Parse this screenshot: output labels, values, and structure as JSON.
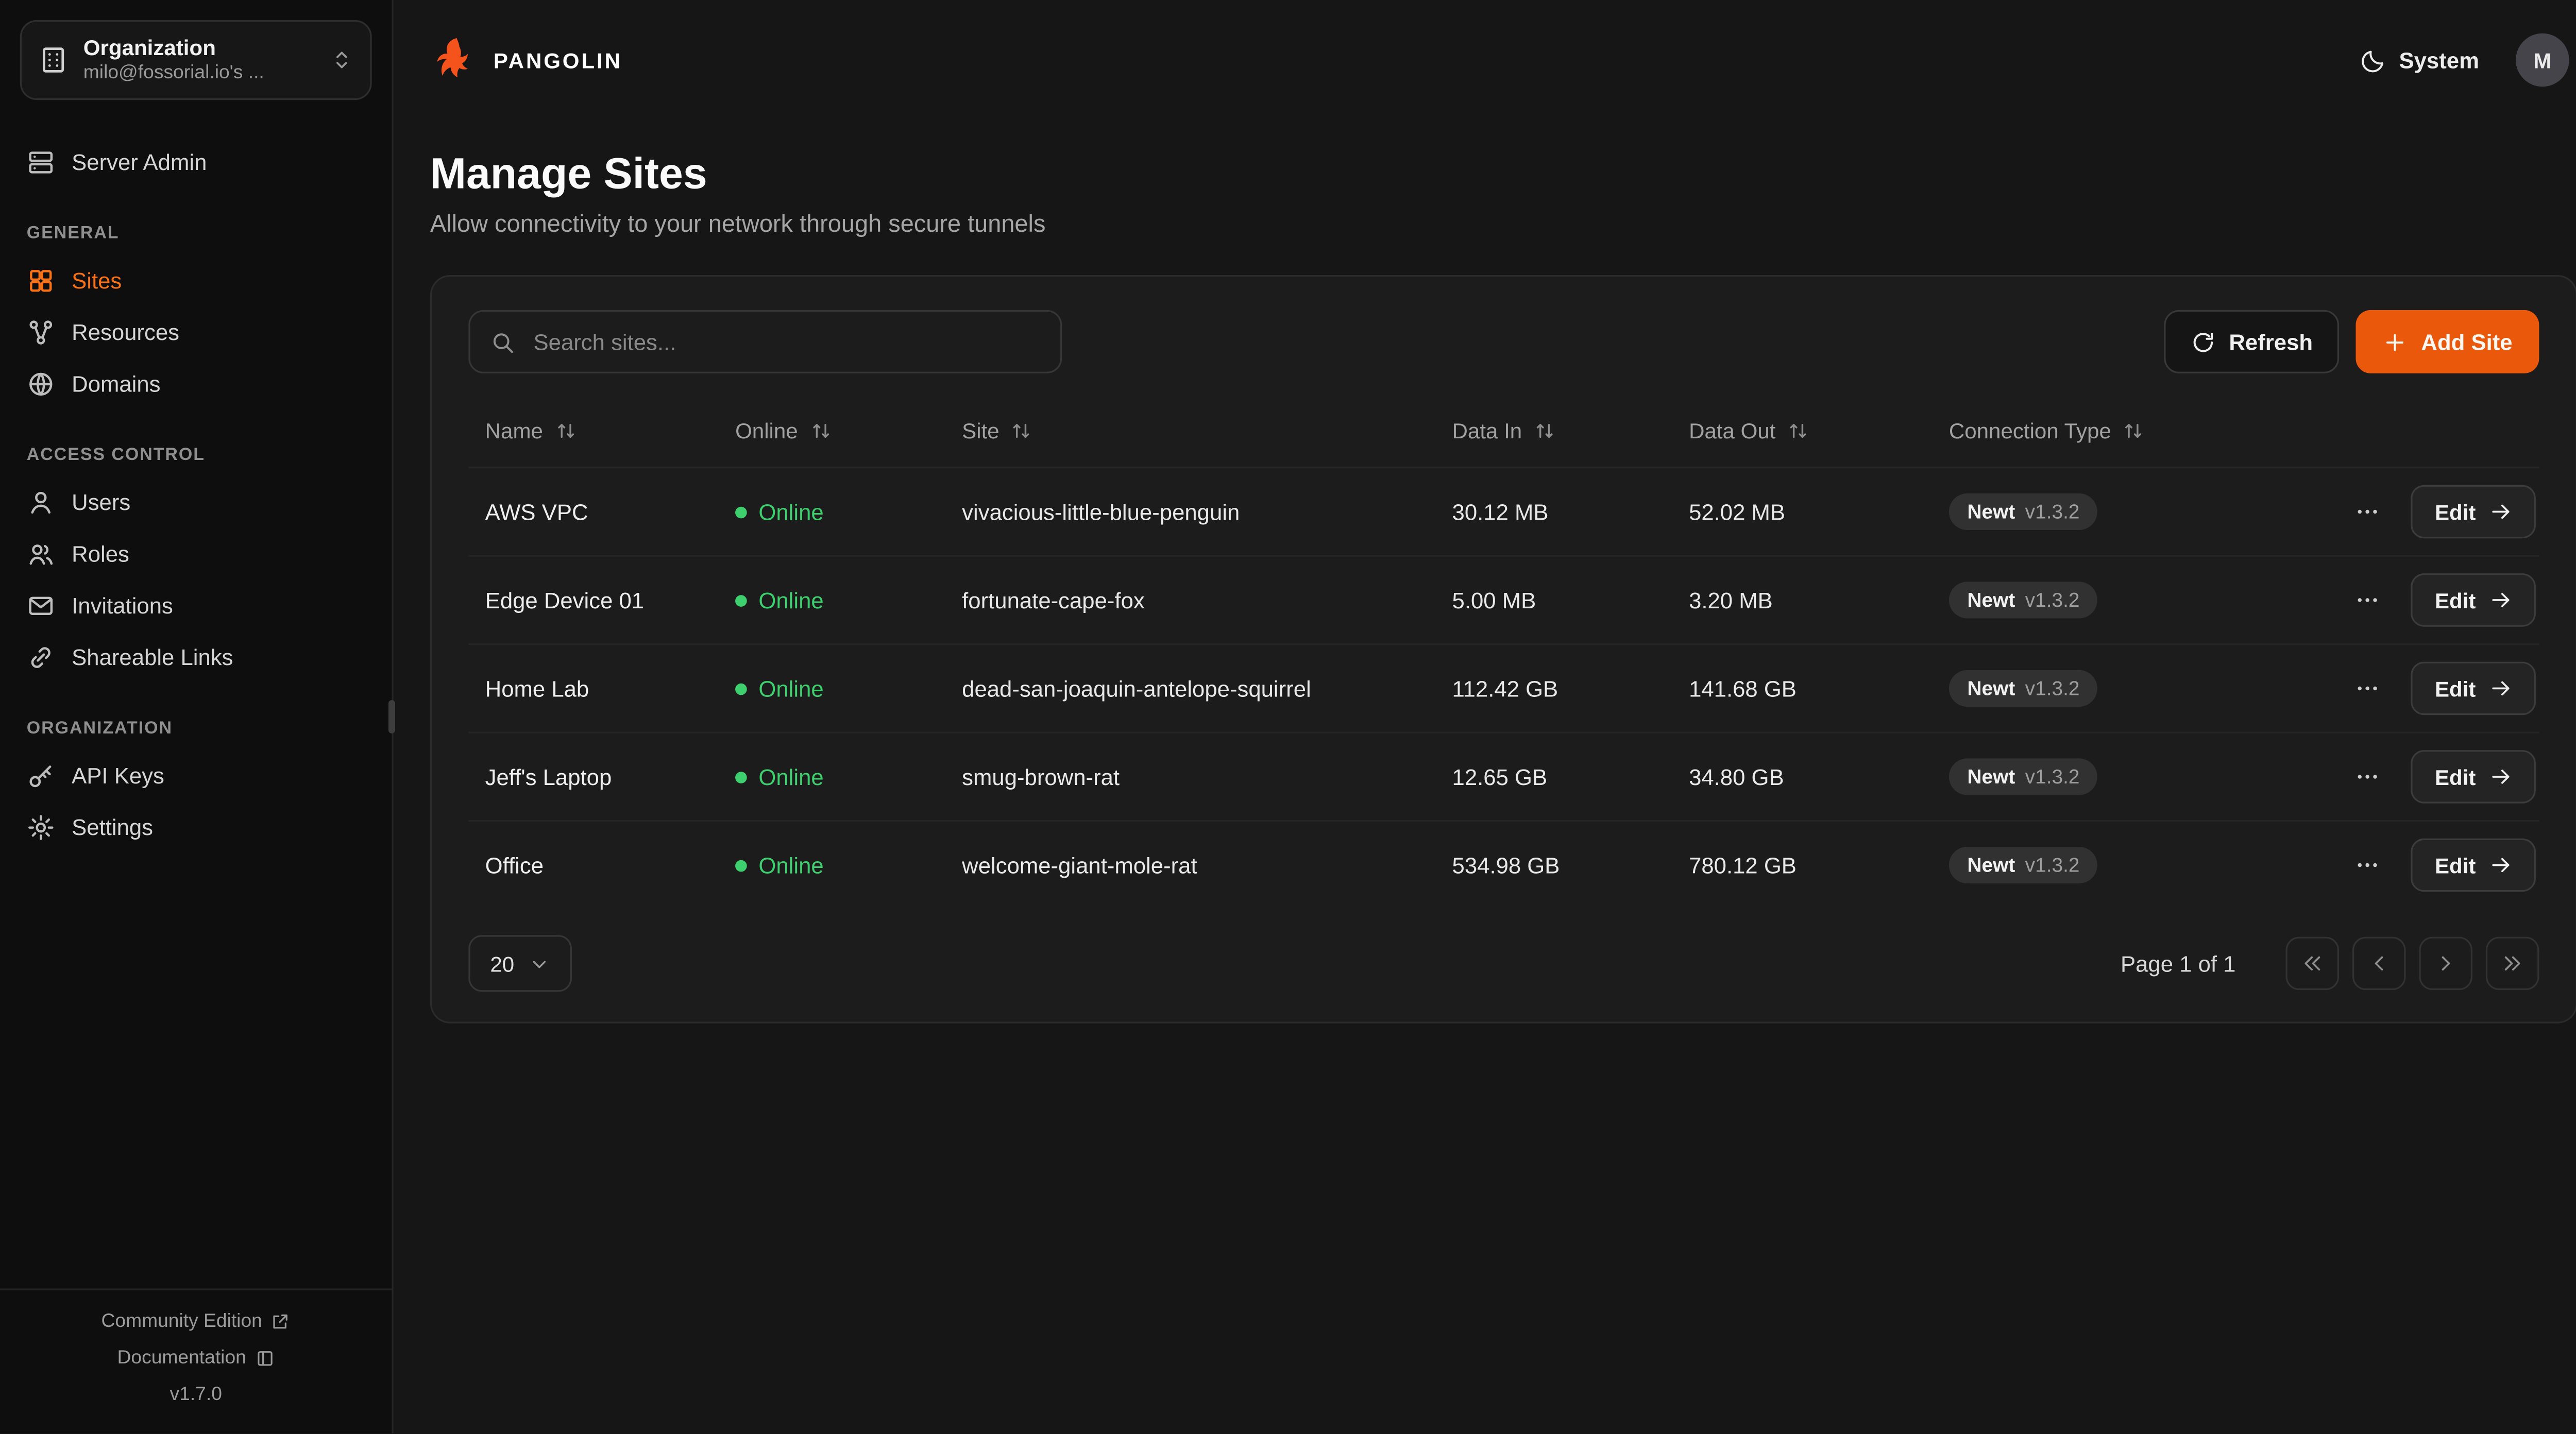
{
  "colors": {
    "accent_orange": "#ea580c",
    "brand_orange": "#f4541c",
    "active_nav_orange": "#f97316",
    "online_green": "#3ecf6e",
    "badge_background": "#313131"
  },
  "org_selector": {
    "icon": "building-icon",
    "title": "Organization",
    "subtitle": "milo@fossorial.io's ..."
  },
  "sidebar": {
    "server_admin": {
      "label": "Server Admin",
      "icon": "server-icon"
    },
    "sections": [
      {
        "label": "GENERAL",
        "items": [
          {
            "label": "Sites",
            "icon": "sites-icon",
            "active": true
          },
          {
            "label": "Resources",
            "icon": "resources-icon",
            "active": false
          },
          {
            "label": "Domains",
            "icon": "domains-icon",
            "active": false
          }
        ]
      },
      {
        "label": "ACCESS CONTROL",
        "items": [
          {
            "label": "Users",
            "icon": "users-icon",
            "active": false
          },
          {
            "label": "Roles",
            "icon": "roles-icon",
            "active": false
          },
          {
            "label": "Invitations",
            "icon": "invitations-icon",
            "active": false
          },
          {
            "label": "Shareable Links",
            "icon": "shareable-links-icon",
            "active": false
          }
        ]
      },
      {
        "label": "ORGANIZATION",
        "items": [
          {
            "label": "API Keys",
            "icon": "api-keys-icon",
            "active": false
          },
          {
            "label": "Settings",
            "icon": "settings-icon",
            "active": false
          }
        ]
      }
    ],
    "footer": {
      "community_edition": "Community Edition",
      "documentation": "Documentation",
      "version": "v1.7.0"
    }
  },
  "topbar": {
    "brand": "PANGOLIN",
    "theme_toggle": "System",
    "avatar_initial": "M"
  },
  "page": {
    "title": "Manage Sites",
    "subtitle": "Allow connectivity to your network through secure tunnels"
  },
  "toolbar": {
    "search_placeholder": "Search sites...",
    "refresh": "Refresh",
    "add_site": "Add Site"
  },
  "table": {
    "columns": [
      {
        "label": "Name"
      },
      {
        "label": "Online"
      },
      {
        "label": "Site"
      },
      {
        "label": "Data In"
      },
      {
        "label": "Data Out"
      },
      {
        "label": "Connection Type"
      }
    ],
    "rows": [
      {
        "name": "AWS VPC",
        "online": "Online",
        "site": "vivacious-little-blue-penguin",
        "data_in": "30.12 MB",
        "data_out": "52.02 MB",
        "connection": {
          "name": "Newt",
          "version": "v1.3.2"
        },
        "edit": "Edit"
      },
      {
        "name": "Edge Device 01",
        "online": "Online",
        "site": "fortunate-cape-fox",
        "data_in": "5.00 MB",
        "data_out": "3.20 MB",
        "connection": {
          "name": "Newt",
          "version": "v1.3.2"
        },
        "edit": "Edit"
      },
      {
        "name": "Home Lab",
        "online": "Online",
        "site": "dead-san-joaquin-antelope-squirrel",
        "data_in": "112.42 GB",
        "data_out": "141.68 GB",
        "connection": {
          "name": "Newt",
          "version": "v1.3.2"
        },
        "edit": "Edit"
      },
      {
        "name": "Jeff's Laptop",
        "online": "Online",
        "site": "smug-brown-rat",
        "data_in": "12.65 GB",
        "data_out": "34.80 GB",
        "connection": {
          "name": "Newt",
          "version": "v1.3.2"
        },
        "edit": "Edit"
      },
      {
        "name": "Office",
        "online": "Online",
        "site": "welcome-giant-mole-rat",
        "data_in": "534.98 GB",
        "data_out": "780.12 GB",
        "connection": {
          "name": "Newt",
          "version": "v1.3.2"
        },
        "edit": "Edit"
      }
    ]
  },
  "pagination": {
    "page_size": "20",
    "page_label": "Page 1 of 1"
  }
}
